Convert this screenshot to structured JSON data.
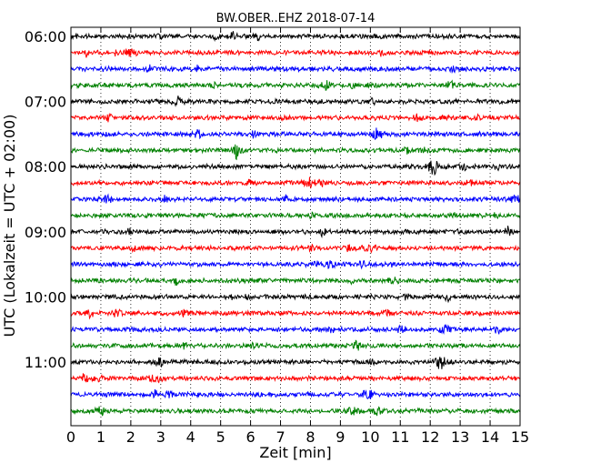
{
  "chart_data": {
    "type": "line",
    "title": "BW.OBER..EHZ 2018-07-14",
    "xlabel": "Zeit  [min]",
    "ylabel": "UTC (Lokalzeit = UTC + 02:00)",
    "xlim": [
      0,
      15
    ],
    "x_ticks": [
      0,
      1,
      2,
      3,
      4,
      5,
      6,
      7,
      8,
      9,
      10,
      11,
      12,
      13,
      14,
      15
    ],
    "x_tick_labels": [
      "0",
      "1",
      "2",
      "3",
      "4",
      "5",
      "6",
      "7",
      "8",
      "9",
      "10",
      "11",
      "12",
      "13",
      "14",
      "15"
    ],
    "y_tick_labels": [
      "06:00",
      "07:00",
      "08:00",
      "09:00",
      "10:00",
      "11:00"
    ],
    "vertical_grid": "dotted",
    "trace_interval_min": 15,
    "colors": [
      "#000000",
      "#ff0000",
      "#0000ff",
      "#008000"
    ],
    "traces": [
      {
        "start": "06:00",
        "color": "#000000"
      },
      {
        "start": "06:15",
        "color": "#ff0000"
      },
      {
        "start": "06:30",
        "color": "#0000ff"
      },
      {
        "start": "06:45",
        "color": "#008000"
      },
      {
        "start": "07:00",
        "color": "#000000"
      },
      {
        "start": "07:15",
        "color": "#ff0000"
      },
      {
        "start": "07:30",
        "color": "#0000ff"
      },
      {
        "start": "07:45",
        "color": "#008000"
      },
      {
        "start": "08:00",
        "color": "#000000"
      },
      {
        "start": "08:15",
        "color": "#ff0000"
      },
      {
        "start": "08:30",
        "color": "#0000ff"
      },
      {
        "start": "08:45",
        "color": "#008000"
      },
      {
        "start": "09:00",
        "color": "#000000"
      },
      {
        "start": "09:15",
        "color": "#ff0000"
      },
      {
        "start": "09:30",
        "color": "#0000ff"
      },
      {
        "start": "09:45",
        "color": "#008000"
      },
      {
        "start": "10:00",
        "color": "#000000"
      },
      {
        "start": "10:15",
        "color": "#ff0000"
      },
      {
        "start": "10:30",
        "color": "#0000ff"
      },
      {
        "start": "10:45",
        "color": "#008000"
      },
      {
        "start": "11:00",
        "color": "#000000"
      },
      {
        "start": "11:15",
        "color": "#ff0000"
      },
      {
        "start": "11:30",
        "color": "#0000ff"
      },
      {
        "start": "11:45",
        "color": "#008000"
      }
    ]
  }
}
